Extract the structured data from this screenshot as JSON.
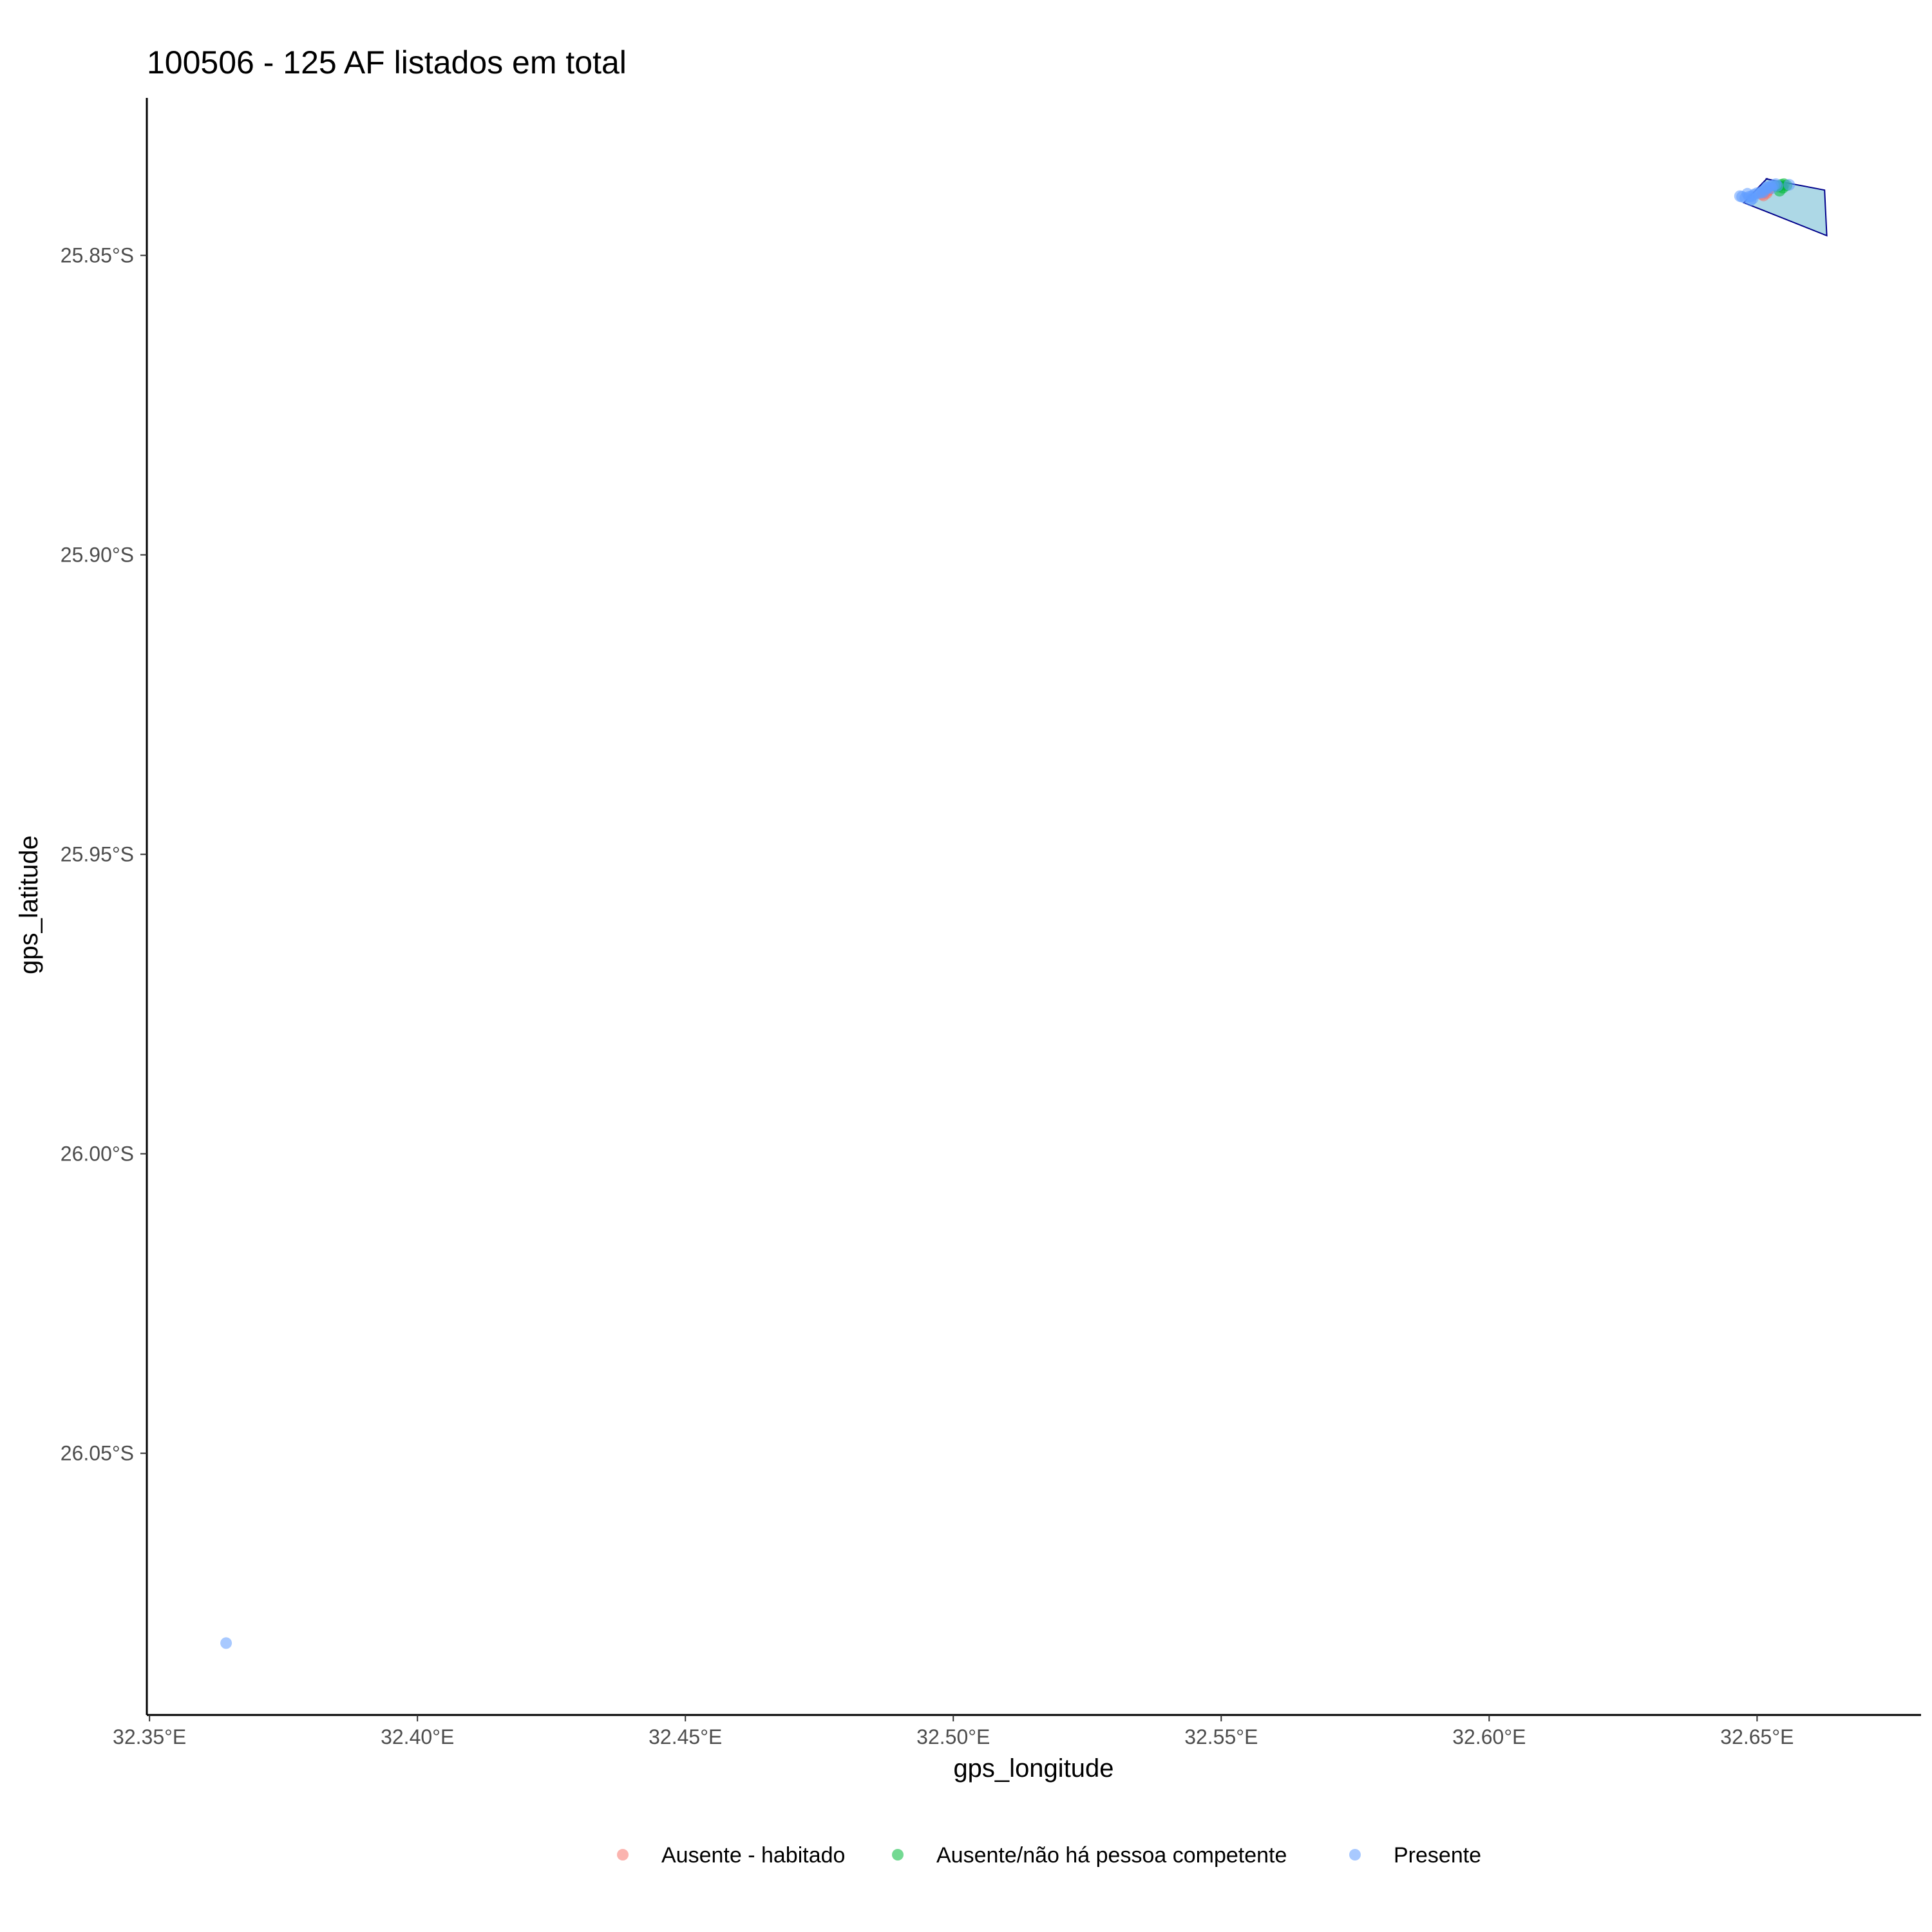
{
  "chart_data": {
    "type": "scatter",
    "title": "100506 - 125 AF listados em total",
    "xlabel": "gps_longitude",
    "ylabel": "gps_latitude",
    "xlim": [
      32.3495,
      32.6806
    ],
    "ylim": [
      -26.0937,
      -25.8237
    ],
    "x_ticks": [
      32.35,
      32.4,
      32.45,
      32.5,
      32.55,
      32.6,
      32.65
    ],
    "x_tick_labels": [
      "32.35°E",
      "32.40°E",
      "32.45°E",
      "32.50°E",
      "32.55°E",
      "32.60°E",
      "32.65°E"
    ],
    "y_ticks": [
      -25.85,
      -25.9,
      -25.95,
      -26.0,
      -26.05
    ],
    "y_tick_labels": [
      "25.85°S",
      "25.90°S",
      "25.95°S",
      "26.00°S",
      "26.05°S"
    ],
    "grid": false,
    "legend_position": "bottom",
    "polygon": {
      "fill": "#add8e6",
      "stroke": "#00008b",
      "lon": [
        32.6516,
        32.6626,
        32.663,
        32.6515,
        32.6475,
        32.6518
      ],
      "lat": [
        -25.8372,
        -25.8391,
        -25.8467,
        -25.8426,
        -25.8412,
        -25.8372
      ]
    },
    "series": [
      {
        "name": "Ausente - habitado",
        "color": "#f8766d",
        "points": [
          [
            32.6512,
            -25.84
          ],
          [
            32.6518,
            -25.8396
          ],
          [
            32.6522,
            -25.839
          ],
          [
            32.6516,
            -25.8394
          ],
          [
            32.6509,
            -25.8398
          ],
          [
            32.652,
            -25.8392
          ]
        ]
      },
      {
        "name": "Ausente/não há pessoa competente",
        "color": "#00ba38",
        "points": [
          [
            32.654,
            -25.8385
          ],
          [
            32.6545,
            -25.8382
          ],
          [
            32.655,
            -25.8381
          ],
          [
            32.6555,
            -25.8383
          ],
          [
            32.6542,
            -25.8392
          ],
          [
            32.6548,
            -25.8387
          ],
          [
            32.6535,
            -25.8384
          ]
        ]
      },
      {
        "name": "Presente",
        "color": "#619cff",
        "points": [
          [
            32.6468,
            -25.8401
          ],
          [
            32.6472,
            -25.8402
          ],
          [
            32.6478,
            -25.8404
          ],
          [
            32.6482,
            -25.8397
          ],
          [
            32.6485,
            -25.8402
          ],
          [
            32.6488,
            -25.8408
          ],
          [
            32.649,
            -25.8401
          ],
          [
            32.6495,
            -25.8398
          ],
          [
            32.65,
            -25.8396
          ],
          [
            32.6505,
            -25.8396
          ],
          [
            32.651,
            -25.8393
          ],
          [
            32.6515,
            -25.839
          ],
          [
            32.652,
            -25.8387
          ],
          [
            32.6525,
            -25.8384
          ],
          [
            32.653,
            -25.8383
          ],
          [
            32.6535,
            -25.8381
          ],
          [
            32.6538,
            -25.8384
          ],
          [
            32.6527,
            -25.8388
          ],
          [
            32.6518,
            -25.8386
          ],
          [
            32.6512,
            -25.8395
          ],
          [
            32.6492,
            -25.8405
          ],
          [
            32.656,
            -25.8382
          ],
          [
            32.3643,
            -26.0817
          ]
        ]
      }
    ]
  }
}
